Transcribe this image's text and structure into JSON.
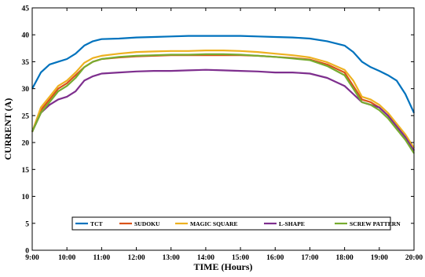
{
  "chart_data": {
    "type": "line",
    "title": "",
    "xlabel": "TIME (Hours)",
    "ylabel": "CURRENT (A)",
    "x_ticks": [
      "9:00",
      "10:00",
      "11:00",
      "12:00",
      "13:00",
      "14:00",
      "15:00",
      "16:00",
      "17:00",
      "18:00",
      "19:00",
      "20:00"
    ],
    "xlim": [
      9,
      20
    ],
    "ylim": [
      0,
      45
    ],
    "y_ticks": [
      0,
      5,
      10,
      15,
      20,
      25,
      30,
      35,
      40,
      45
    ],
    "grid": false,
    "legend_position": "bottom-center",
    "x_hours": [
      9.0,
      9.25,
      9.5,
      9.75,
      10.0,
      10.25,
      10.5,
      10.75,
      11.0,
      11.5,
      12.0,
      12.5,
      13.0,
      13.5,
      14.0,
      14.5,
      15.0,
      15.5,
      16.0,
      16.5,
      17.0,
      17.5,
      18.0,
      18.25,
      18.5,
      18.75,
      19.0,
      19.25,
      19.5,
      19.75,
      20.0
    ],
    "series": [
      {
        "name": "TCT",
        "color": "#0072BD",
        "values": [
          30.0,
          33.0,
          34.5,
          35.0,
          35.5,
          36.5,
          38.0,
          38.8,
          39.2,
          39.3,
          39.5,
          39.6,
          39.7,
          39.8,
          39.8,
          39.8,
          39.8,
          39.7,
          39.6,
          39.5,
          39.3,
          38.8,
          38.0,
          36.8,
          35.0,
          34.0,
          33.3,
          32.5,
          31.5,
          29.0,
          25.5
        ]
      },
      {
        "name": "SUDOKU",
        "color": "#D95319",
        "values": [
          22.0,
          26.0,
          28.0,
          30.0,
          31.0,
          32.5,
          34.0,
          35.0,
          35.5,
          35.8,
          36.0,
          36.1,
          36.2,
          36.2,
          36.2,
          36.2,
          36.2,
          36.1,
          35.9,
          35.7,
          35.4,
          34.5,
          33.0,
          30.5,
          28.0,
          27.5,
          26.5,
          25.0,
          23.0,
          21.0,
          18.5
        ]
      },
      {
        "name": "MAGIC SQUARE",
        "color": "#EDB120",
        "values": [
          22.0,
          26.5,
          28.5,
          30.5,
          31.5,
          33.0,
          34.8,
          35.7,
          36.1,
          36.5,
          36.8,
          36.9,
          37.0,
          37.0,
          37.1,
          37.1,
          37.0,
          36.8,
          36.5,
          36.2,
          35.8,
          34.9,
          33.5,
          31.5,
          28.5,
          28.0,
          27.0,
          25.5,
          23.5,
          21.5,
          19.0
        ]
      },
      {
        "name": "L-SHAPE",
        "color": "#7E2F8E",
        "values": [
          22.0,
          25.5,
          27.0,
          28.0,
          28.5,
          29.5,
          31.5,
          32.3,
          32.8,
          33.0,
          33.2,
          33.3,
          33.3,
          33.4,
          33.5,
          33.4,
          33.3,
          33.2,
          33.0,
          33.0,
          32.8,
          32.0,
          30.5,
          29.0,
          27.5,
          27.0,
          26.5,
          25.0,
          23.0,
          21.0,
          18.5
        ]
      },
      {
        "name": "SCREW PATTERN",
        "color": "#77AC30",
        "values": [
          22.0,
          25.5,
          27.5,
          29.5,
          30.5,
          32.0,
          34.0,
          35.0,
          35.5,
          35.9,
          36.1,
          36.2,
          36.3,
          36.3,
          36.4,
          36.4,
          36.3,
          36.1,
          35.9,
          35.6,
          35.3,
          34.2,
          32.5,
          30.0,
          27.5,
          27.0,
          26.0,
          24.5,
          22.5,
          20.5,
          18.0
        ]
      }
    ]
  }
}
